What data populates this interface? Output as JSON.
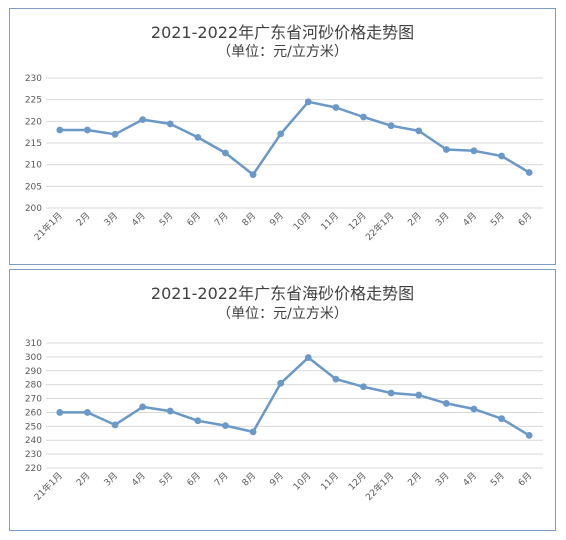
{
  "chart_data": [
    {
      "type": "line",
      "title": "2021-2022年广东省河砂价格走势图",
      "subtitle": "（单位：元/立方米）",
      "categories": [
        "21年1月",
        "2月",
        "3月",
        "4月",
        "5月",
        "6月",
        "7月",
        "8月",
        "9月",
        "10月",
        "11月",
        "12月",
        "22年1月",
        "2月",
        "3月",
        "4月",
        "5月",
        "6月"
      ],
      "yticks": [
        "200",
        "205",
        "210",
        "215",
        "220",
        "225",
        "230"
      ],
      "ylim": [
        200,
        230
      ],
      "series": [
        {
          "values": [
            218,
            218,
            217,
            220.4,
            219.4,
            216.3,
            212.7,
            207.7,
            217.1,
            224.5,
            223.2,
            221,
            219,
            217.8,
            213.5,
            213.2,
            212,
            208.2
          ]
        }
      ],
      "color": "#6a98c8",
      "grid": true,
      "legend": "none"
    },
    {
      "type": "line",
      "title": "2021-2022年广东省海砂价格走势图",
      "subtitle": "（单位：元/立方米）",
      "categories": [
        "21年1月",
        "2月",
        "3月",
        "4月",
        "5月",
        "6月",
        "7月",
        "8月",
        "9月",
        "10月",
        "11月",
        "12月",
        "22年1月",
        "2月",
        "3月",
        "4月",
        "5月",
        "6月"
      ],
      "yticks": [
        "220",
        "230",
        "240",
        "250",
        "260",
        "270",
        "280",
        "290",
        "300",
        "310"
      ],
      "ylim": [
        220,
        310
      ],
      "series": [
        {
          "values": [
            260,
            260,
            251,
            264,
            261,
            254,
            250.5,
            246,
            281,
            299.5,
            284,
            278.5,
            274,
            272.5,
            266.5,
            262.5,
            255.5,
            243.5
          ]
        }
      ],
      "color": "#6a98c8",
      "grid": true,
      "legend": "none"
    }
  ]
}
